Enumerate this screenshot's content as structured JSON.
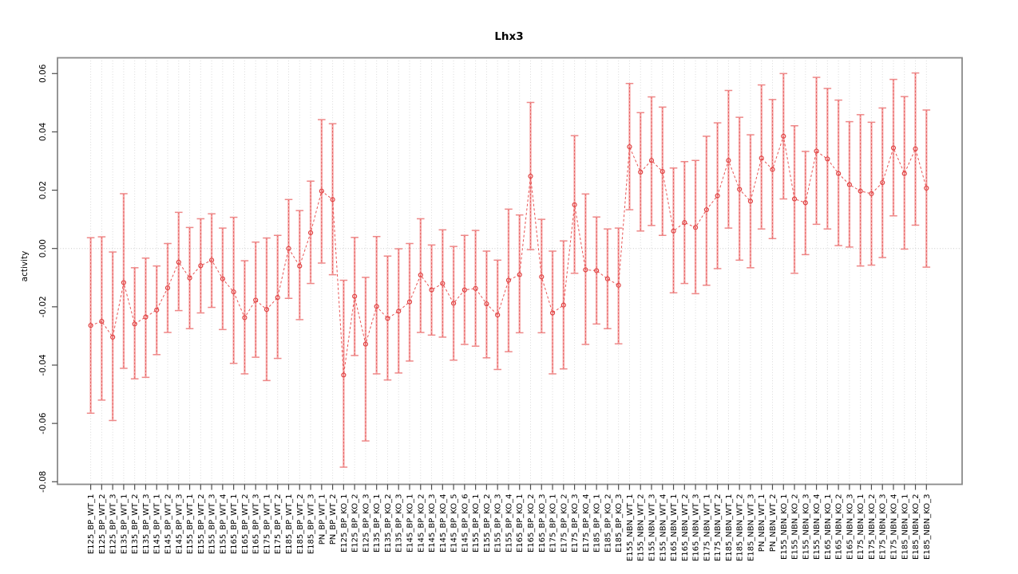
{
  "chart_data": {
    "type": "scatter",
    "title": "Lhx3",
    "xlabel": "",
    "ylabel": "activity",
    "ylim": [
      -0.0812,
      0.0656
    ],
    "y_tick_labels": [
      "0.06",
      "0.04",
      "0.02",
      "0.00",
      "-0.02",
      "-0.04",
      "-0.06",
      "-0.08"
    ],
    "y_tick_values": [
      0.06,
      0.04,
      0.02,
      0.0,
      -0.02,
      -0.04,
      -0.06,
      -0.08
    ],
    "grid": "vertical-dotted-per-category",
    "zero_reference_line": true,
    "legend": "none",
    "marker": "open-circle",
    "line_style": "dashed",
    "categories": [
      "E125_BP_WT_1",
      "E125_BP_WT_2",
      "E125_BP_WT_3",
      "E135_BP_WT_1",
      "E135_BP_WT_2",
      "E135_BP_WT_3",
      "E145_BP_WT_1",
      "E145_BP_WT_2",
      "E145_BP_WT_3",
      "E155_BP_WT_1",
      "E155_BP_WT_2",
      "E155_BP_WT_3",
      "E155_BP_WT_4",
      "E165_BP_WT_1",
      "E165_BP_WT_2",
      "E165_BP_WT_3",
      "E175_BP_WT_1",
      "E175_BP_WT_2",
      "E185_BP_WT_1",
      "E185_BP_WT_2",
      "E185_BP_WT_3",
      "PN_BP_WT_1",
      "PN_BP_WT_2",
      "E125_BP_KO_1",
      "E125_BP_KO_2",
      "E125_BP_KO_3",
      "E135_BP_KO_1",
      "E135_BP_KO_2",
      "E135_BP_KO_3",
      "E145_BP_KO_1",
      "E145_BP_KO_2",
      "E145_BP_KO_3",
      "E145_BP_KO_4",
      "E145_BP_KO_5",
      "E145_BP_KO_6",
      "E155_BP_KO_1",
      "E155_BP_KO_2",
      "E155_BP_KO_3",
      "E155_BP_KO_4",
      "E165_BP_KO_1",
      "E165_BP_KO_2",
      "E165_BP_KO_3",
      "E175_BP_KO_1",
      "E175_BP_KO_2",
      "E175_BP_KO_3",
      "E175_BP_KO_4",
      "E185_BP_KO_1",
      "E185_BP_KO_2",
      "E185_BP_KO_3",
      "E155_NBN_WT_1",
      "E155_NBN_WT_2",
      "E155_NBN_WT_3",
      "E155_NBN_WT_4",
      "E165_NBN_WT_1",
      "E165_NBN_WT_2",
      "E165_NBN_WT_3",
      "E175_NBN_WT_1",
      "E175_NBN_WT_2",
      "E185_NBN_WT_1",
      "E185_NBN_WT_2",
      "E185_NBN_WT_3",
      "PN_NBN_WT_1",
      "PN_NBN_WT_2",
      "E155_NBN_KO_1",
      "E155_NBN_KO_2",
      "E155_NBN_KO_3",
      "E155_NBN_KO_4",
      "E165_NBN_KO_1",
      "E165_NBN_KO_2",
      "E165_NBN_KO_3",
      "E175_NBN_KO_1",
      "E175_NBN_KO_2",
      "E175_NBN_KO_3",
      "E175_NBN_KO_4",
      "E185_NBN_KO_1",
      "E185_NBN_KO_2",
      "E185_NBN_KO_3"
    ],
    "series": [
      {
        "name": "activity",
        "values": [
          -0.0264,
          -0.025,
          -0.0304,
          -0.0117,
          -0.0259,
          -0.0235,
          -0.0211,
          -0.0135,
          -0.0047,
          -0.0101,
          -0.0059,
          -0.004,
          -0.0104,
          -0.0149,
          -0.0237,
          -0.0177,
          -0.0209,
          -0.0168,
          0.0,
          -0.006,
          0.0054,
          0.0197,
          0.0168,
          -0.0434,
          -0.0164,
          -0.0328,
          -0.0199,
          -0.024,
          -0.0215,
          -0.0183,
          -0.0091,
          -0.0142,
          -0.012,
          -0.0188,
          -0.0142,
          -0.0137,
          -0.019,
          -0.0228,
          -0.0109,
          -0.009,
          0.0248,
          -0.0097,
          -0.0221,
          -0.0194,
          0.015,
          -0.0073,
          -0.0076,
          -0.0104,
          -0.0126,
          0.0349,
          0.0262,
          0.0302,
          0.0264,
          0.006,
          0.0089,
          0.0072,
          0.0133,
          0.0181,
          0.0302,
          0.0203,
          0.0162,
          0.031,
          0.0271,
          0.0385,
          0.017,
          0.0157,
          0.0334,
          0.0307,
          0.0257,
          0.0219,
          0.0197,
          0.0188,
          0.0226,
          0.0345,
          0.0257,
          0.0342,
          0.0207
        ],
        "upper": [
          0.0037,
          0.004,
          -0.0012,
          0.0188,
          -0.0066,
          -0.0033,
          -0.006,
          0.0017,
          0.0124,
          0.0072,
          0.0102,
          0.0119,
          0.007,
          0.0107,
          -0.0042,
          0.0022,
          0.0036,
          0.0045,
          0.0168,
          0.013,
          0.0231,
          0.0442,
          0.0428,
          -0.0109,
          0.0038,
          -0.0099,
          0.0041,
          -0.0026,
          -0.0001,
          0.0017,
          0.0102,
          0.0012,
          0.0064,
          0.0007,
          0.0045,
          0.0062,
          -0.0009,
          -0.004,
          0.0135,
          0.0115,
          0.0501,
          0.01,
          -0.0009,
          0.0026,
          0.0387,
          0.0187,
          0.0108,
          0.0067,
          0.007,
          0.0566,
          0.0466,
          0.052,
          0.0485,
          0.0276,
          0.0298,
          0.0302,
          0.0385,
          0.0431,
          0.0542,
          0.045,
          0.039,
          0.0561,
          0.0511,
          0.06,
          0.0421,
          0.0333,
          0.0587,
          0.0549,
          0.0509,
          0.0435,
          0.0459,
          0.0433,
          0.0482,
          0.058,
          0.0521,
          0.0602,
          0.0475
        ],
        "lower": [
          -0.0565,
          -0.052,
          -0.059,
          -0.0411,
          -0.0447,
          -0.0442,
          -0.0364,
          -0.0288,
          -0.0213,
          -0.0275,
          -0.0221,
          -0.0202,
          -0.0278,
          -0.0394,
          -0.043,
          -0.0373,
          -0.0453,
          -0.0377,
          -0.0171,
          -0.0244,
          -0.012,
          -0.005,
          -0.009,
          -0.075,
          -0.0367,
          -0.066,
          -0.043,
          -0.0451,
          -0.0427,
          -0.0386,
          -0.0288,
          -0.0297,
          -0.0304,
          -0.0383,
          -0.0329,
          -0.0335,
          -0.0375,
          -0.0415,
          -0.0354,
          -0.0289,
          -0.0004,
          -0.0289,
          -0.043,
          -0.0413,
          -0.0085,
          -0.0329,
          -0.0259,
          -0.0275,
          -0.0327,
          0.0133,
          0.006,
          0.0079,
          0.0045,
          -0.0152,
          -0.012,
          -0.0155,
          -0.0126,
          -0.0069,
          0.007,
          -0.004,
          -0.0066,
          0.0067,
          0.0034,
          0.017,
          -0.0085,
          -0.0021,
          0.0083,
          0.0067,
          0.001,
          0.0005,
          -0.006,
          -0.0057,
          -0.0031,
          0.0112,
          -0.0002,
          0.008,
          -0.0064
        ]
      }
    ],
    "colors": {
      "point": "#e04444",
      "line": "#e85555",
      "error_bar": "#f6a9a9",
      "error_bar_dash": "#e05050",
      "error_cap": "#ee8888",
      "grid": "#d9d9d9",
      "zero_line": "#c9c9c9",
      "box": "#8a8a8a",
      "tick": "#4d4d4d",
      "text": "#000000"
    }
  }
}
